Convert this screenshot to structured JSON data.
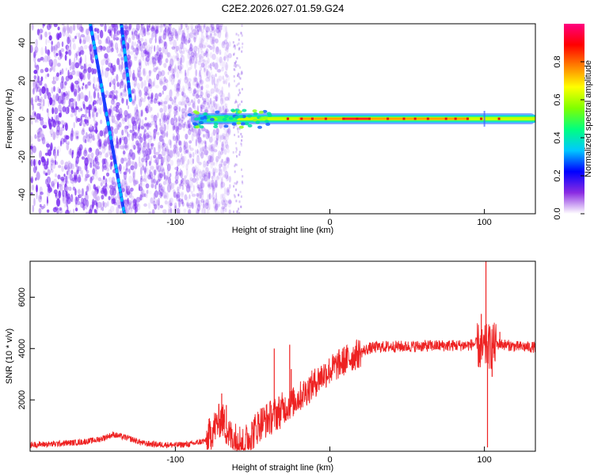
{
  "figure_title": "C2E2.2026.027.01.59.G24",
  "chart_data": [
    {
      "type": "heatmap",
      "title": "C2E2.2026.027.01.59.G24",
      "xlabel": "Height of straight line (km)",
      "ylabel": "Frequency (Hz)",
      "xlim": [
        -194,
        133
      ],
      "ylim": [
        -50,
        50
      ],
      "xticks": [
        -100,
        0,
        100
      ],
      "xtick_labels": [
        "-100",
        "0",
        "100"
      ],
      "yticks": [
        -40,
        -20,
        0,
        20,
        40
      ],
      "ytick_labels": [
        "-40",
        "-20",
        "0",
        "20",
        "40"
      ],
      "colorbar": {
        "label": "Normalized spectral amplitude",
        "range": [
          0,
          1
        ],
        "ticks": [
          0.0,
          0.2,
          0.4,
          0.6,
          0.8
        ],
        "tick_labels": [
          "0.0",
          "0.2",
          "0.4",
          "0.6",
          "0.8"
        ],
        "colors": [
          "#ffffff",
          "#8a2be2",
          "#0000ff",
          "#00c8ff",
          "#00ff80",
          "#80ff00",
          "#ffff00",
          "#ff8000",
          "#ff0000",
          "#ff0080"
        ]
      },
      "features": {
        "noise_region_x": [
          -194,
          -80
        ],
        "noise_color": "#7a2cf0",
        "tracks": [
          {
            "name": "track-1",
            "x": [
              -155,
              -133
            ],
            "y": [
              50,
              -50
            ]
          },
          {
            "name": "track-2",
            "x": [
              -135,
              -129
            ],
            "y": [
              50,
              10
            ]
          }
        ],
        "carrier": {
          "y": 0,
          "x_start": -90,
          "x_end": 133,
          "peak_x": [
            -20,
            90
          ],
          "bright_x": [
            8,
            25
          ]
        }
      }
    },
    {
      "type": "line",
      "title": "",
      "xlabel": "Height of straight line (km)",
      "ylabel": "SNR (10 * v/v)",
      "xlim": [
        -194,
        133
      ],
      "ylim": [
        0,
        7400
      ],
      "xticks": [
        -100,
        0,
        100
      ],
      "xtick_labels": [
        "-100",
        "0",
        "100"
      ],
      "yticks": [
        2000,
        4000,
        6000
      ],
      "ytick_labels": [
        "2000",
        "4000",
        "6000"
      ],
      "series": [
        {
          "name": "SNR",
          "color": "#ee2222",
          "x": [
            -194,
            -180,
            -160,
            -150,
            -140,
            -130,
            -120,
            -110,
            -100,
            -90,
            -80,
            -75,
            -70,
            -65,
            -60,
            -55,
            -50,
            -45,
            -40,
            -35,
            -30,
            -25,
            -20,
            -15,
            -10,
            -5,
            0,
            10,
            20,
            25,
            30,
            40,
            50,
            60,
            70,
            80,
            90,
            95,
            98,
            100,
            102,
            104,
            106,
            110,
            120,
            133
          ],
          "values": [
            250,
            280,
            360,
            450,
            650,
            500,
            300,
            260,
            240,
            280,
            420,
            900,
            1300,
            600,
            420,
            350,
            700,
            1100,
            1250,
            1450,
            1650,
            1850,
            2100,
            2350,
            2650,
            2950,
            3150,
            3550,
            3850,
            4000,
            4050,
            4080,
            4080,
            4100,
            4110,
            4120,
            4130,
            4200,
            3900,
            4000,
            4100,
            4050,
            4120,
            4180,
            4080,
            4050
          ],
          "spikes": [
            {
              "x": -70,
              "value": 2250
            },
            {
              "x": -67,
              "value": 1800
            },
            {
              "x": -36,
              "value": 4000
            },
            {
              "x": -26,
              "value": 4150
            },
            {
              "x": -25,
              "value": 3200
            },
            {
              "x": 98,
              "value": 5350
            },
            {
              "x": 101,
              "value": 7400
            },
            {
              "x": 102,
              "value": 150
            },
            {
              "x": 105,
              "value": 2900
            },
            {
              "x": 110,
              "value": 4650
            }
          ]
        }
      ]
    }
  ]
}
